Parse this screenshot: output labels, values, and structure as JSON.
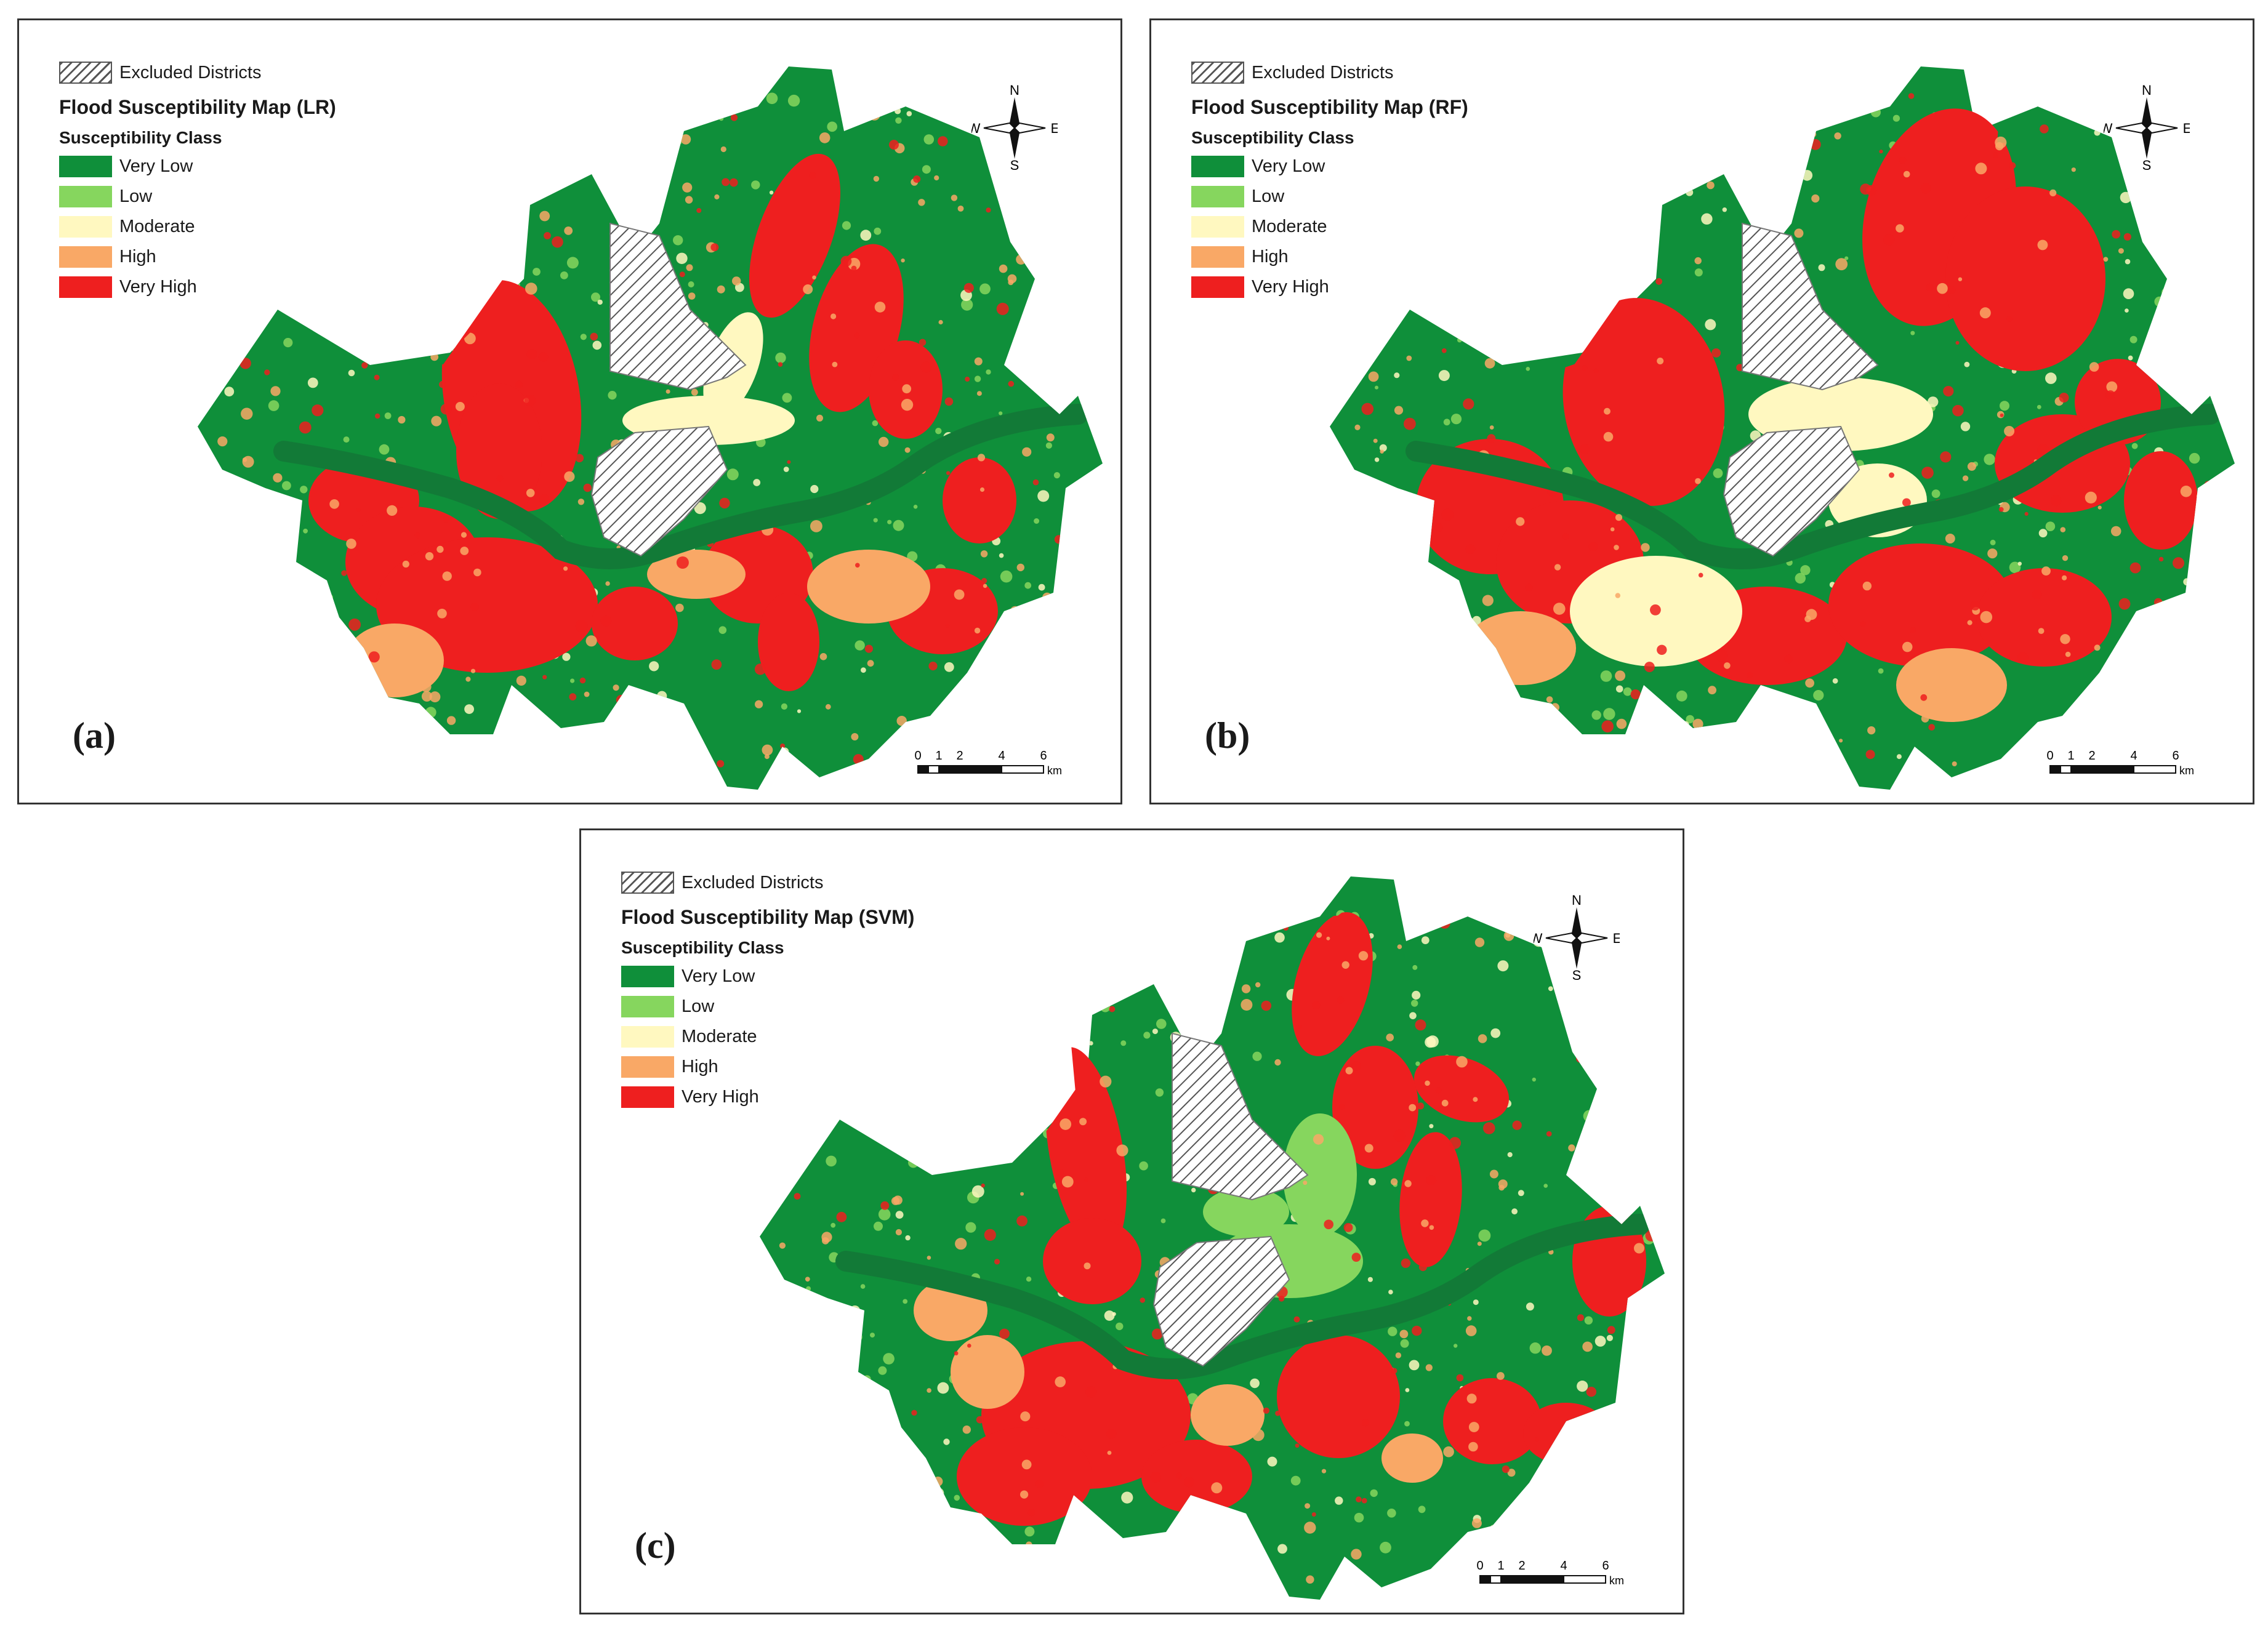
{
  "colors": {
    "very_low": "#0f8f3a",
    "low": "#86d65e",
    "moderate": "#fff8c0",
    "high": "#f9a866",
    "very_high": "#ee1f1f",
    "river": "#127a37",
    "hatch": "#555555"
  },
  "legend": {
    "excluded": "Excluded Districts",
    "class_title": "Susceptibility Class",
    "classes": [
      {
        "label": "Very Low",
        "color_key": "very_low"
      },
      {
        "label": "Low",
        "color_key": "low"
      },
      {
        "label": "Moderate",
        "color_key": "moderate"
      },
      {
        "label": "High",
        "color_key": "high"
      },
      {
        "label": "Very High",
        "color_key": "very_high"
      }
    ]
  },
  "compass": {
    "n": "N",
    "s": "S",
    "e": "E",
    "w": "W"
  },
  "scale": {
    "ticks": [
      "0",
      "1",
      "2",
      "4",
      "6"
    ],
    "unit": "km"
  },
  "panels": [
    {
      "id": "a",
      "label": "(a)",
      "title": "Flood Susceptibility Map (LR)",
      "hot_key": "very_high",
      "warm_key": "high",
      "mild_key": "moderate"
    },
    {
      "id": "b",
      "label": "(b)",
      "title": "Flood Susceptibility Map (RF)",
      "hot_key": "very_high",
      "warm_key": "high",
      "mild_key": "moderate"
    },
    {
      "id": "c",
      "label": "(c)",
      "title": "Flood Susceptibility Map (SVM)",
      "hot_key": "very_high",
      "warm_key": "high",
      "mild_key": "low"
    }
  ]
}
